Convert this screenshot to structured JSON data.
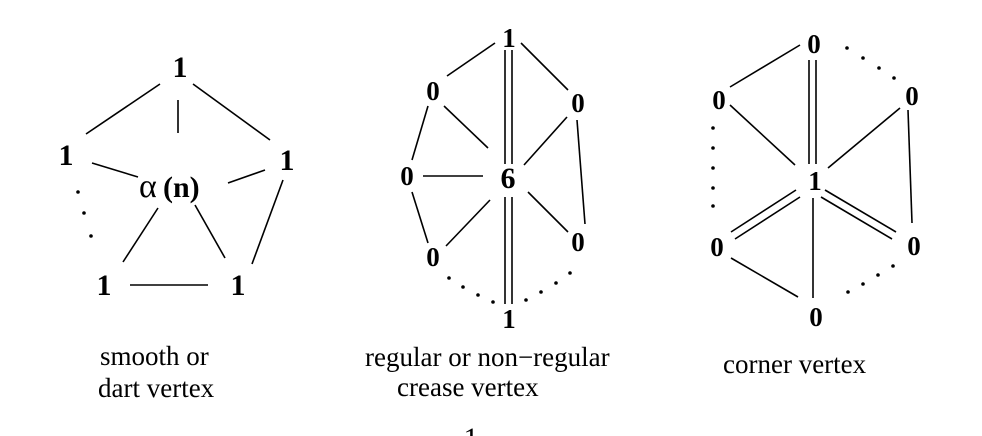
{
  "figures": [
    {
      "id": "smooth",
      "center_label": "α",
      "center_arg": "(n)",
      "labels": [
        "1",
        "1",
        "1",
        "1",
        "1"
      ],
      "caption_lines": [
        "smooth or",
        "dart vertex"
      ]
    },
    {
      "id": "crease",
      "center_label": "6",
      "labels": [
        "1",
        "0",
        "0",
        "0",
        "0",
        "0",
        "1"
      ],
      "caption_lines": [
        "regular or non−regular",
        "crease vertex"
      ]
    },
    {
      "id": "corner",
      "center_label": "1",
      "labels": [
        "0",
        "0",
        "0",
        "0",
        "0",
        "0"
      ],
      "caption_lines": [
        "corner vertex"
      ]
    }
  ],
  "bottom_fragment": "1"
}
